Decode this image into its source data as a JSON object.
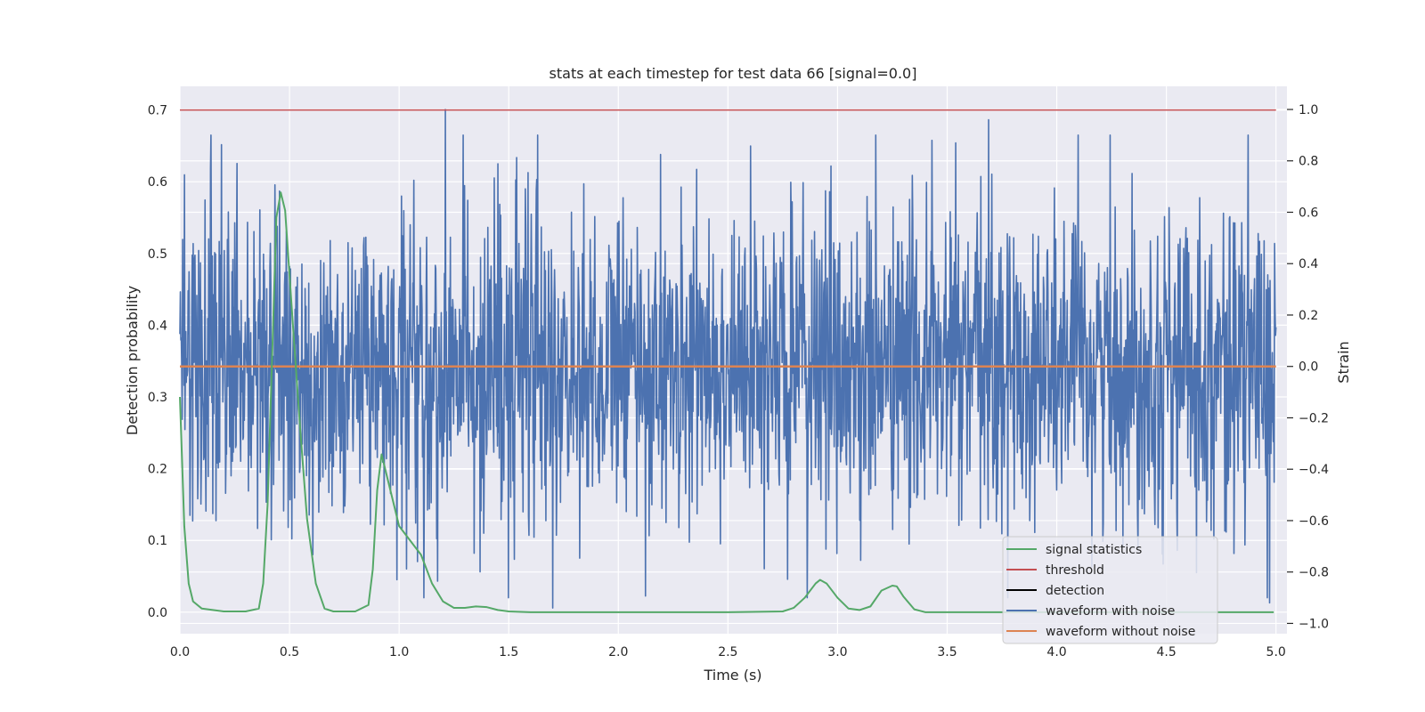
{
  "chart_data": {
    "type": "line",
    "title": "stats at each timestep for test data 66 [signal=0.0]",
    "xlabel": "Time (s)",
    "ylabel_left": "Detection probability",
    "ylabel_right": "Strain",
    "xlim": [
      0.0,
      5.05
    ],
    "ylim_left": [
      -0.03,
      0.733
    ],
    "ylim_right": [
      -1.04,
      1.09
    ],
    "x_ticks": [
      0.0,
      0.5,
      1.0,
      1.5,
      2.0,
      2.5,
      3.0,
      3.5,
      4.0,
      4.5,
      5.0
    ],
    "x_tick_labels": [
      "0.0",
      "0.5",
      "1.0",
      "1.5",
      "2.0",
      "2.5",
      "3.0",
      "3.5",
      "4.0",
      "4.5",
      "5.0"
    ],
    "y_left_ticks": [
      0.0,
      0.1,
      0.2,
      0.3,
      0.4,
      0.5,
      0.6,
      0.7
    ],
    "y_left_tick_labels": [
      "0.0",
      "0.1",
      "0.2",
      "0.3",
      "0.4",
      "0.5",
      "0.6",
      "0.7"
    ],
    "y_right_ticks": [
      -1.0,
      -0.8,
      -0.6,
      -0.4,
      -0.2,
      0.0,
      0.2,
      0.4,
      0.6,
      0.8,
      1.0
    ],
    "y_right_tick_labels": [
      "−1.0",
      "−0.8",
      "−0.6",
      "−0.4",
      "−0.2",
      "0.0",
      "0.2",
      "0.4",
      "0.6",
      "0.8",
      "1.0"
    ],
    "grid": true,
    "legend_position": "lower-right",
    "colors": {
      "signal_statistics": "#55a868",
      "threshold": "#c44e52",
      "detection": "#000000",
      "waveform_with_noise": "#4c72b0",
      "waveform_without_noise": "#dd8452",
      "axes_bg": "#eaeaf2",
      "grid": "#ffffff"
    },
    "legend": [
      "signal statistics",
      "threshold",
      "detection",
      "waveform with noise",
      "waveform without noise"
    ],
    "series": [
      {
        "name": "signal statistics",
        "axis": "left",
        "x": [
          0.0,
          0.02,
          0.04,
          0.06,
          0.1,
          0.2,
          0.3,
          0.36,
          0.38,
          0.4,
          0.42,
          0.44,
          0.46,
          0.48,
          0.5,
          0.52,
          0.55,
          0.58,
          0.62,
          0.66,
          0.7,
          0.8,
          0.86,
          0.88,
          0.9,
          0.92,
          0.96,
          1.0,
          1.05,
          1.1,
          1.15,
          1.2,
          1.25,
          1.3,
          1.35,
          1.4,
          1.45,
          1.5,
          1.6,
          2.0,
          2.5,
          2.75,
          2.8,
          2.85,
          2.9,
          2.92,
          2.95,
          3.0,
          3.05,
          3.1,
          3.15,
          3.2,
          3.25,
          3.27,
          3.3,
          3.35,
          3.4,
          3.5,
          4.0,
          4.5,
          4.99
        ],
        "y": [
          0.3,
          0.12,
          0.04,
          0.015,
          0.005,
          0.001,
          0.001,
          0.005,
          0.04,
          0.15,
          0.35,
          0.55,
          0.585,
          0.56,
          0.47,
          0.38,
          0.25,
          0.13,
          0.04,
          0.005,
          0.001,
          0.001,
          0.01,
          0.06,
          0.17,
          0.22,
          0.17,
          0.12,
          0.1,
          0.08,
          0.04,
          0.015,
          0.006,
          0.006,
          0.008,
          0.007,
          0.003,
          0.001,
          0.0,
          0.0,
          0.0,
          0.001,
          0.006,
          0.02,
          0.04,
          0.045,
          0.04,
          0.02,
          0.005,
          0.003,
          0.008,
          0.03,
          0.037,
          0.036,
          0.022,
          0.004,
          0.0,
          0.0,
          0.0,
          0.0,
          0.0
        ]
      },
      {
        "name": "threshold",
        "axis": "left",
        "x": [
          0.0,
          5.0
        ],
        "y": [
          0.7,
          0.7
        ]
      },
      {
        "name": "waveform without noise",
        "axis": "right",
        "x": [
          0.0,
          5.0
        ],
        "y": [
          0.0,
          0.0
        ]
      },
      {
        "name": "waveform with noise",
        "axis": "right",
        "x_range": [
          0.0,
          5.0
        ],
        "noise_std": 0.3,
        "num_points": 2400,
        "spikes": [
          {
            "x": 1.21,
            "y": 1.0
          },
          {
            "x": 3.69,
            "y": 0.96
          },
          {
            "x": 1.7,
            "y": -0.94
          },
          {
            "x": 0.26,
            "y": 0.79
          },
          {
            "x": 0.14,
            "y": 0.77
          },
          {
            "x": 2.97,
            "y": 0.78
          },
          {
            "x": 3.43,
            "y": 0.88
          },
          {
            "x": 3.54,
            "y": 0.87
          },
          {
            "x": 0.99,
            "y": -0.83
          },
          {
            "x": 4.97,
            "y": -0.92
          }
        ]
      }
    ]
  }
}
